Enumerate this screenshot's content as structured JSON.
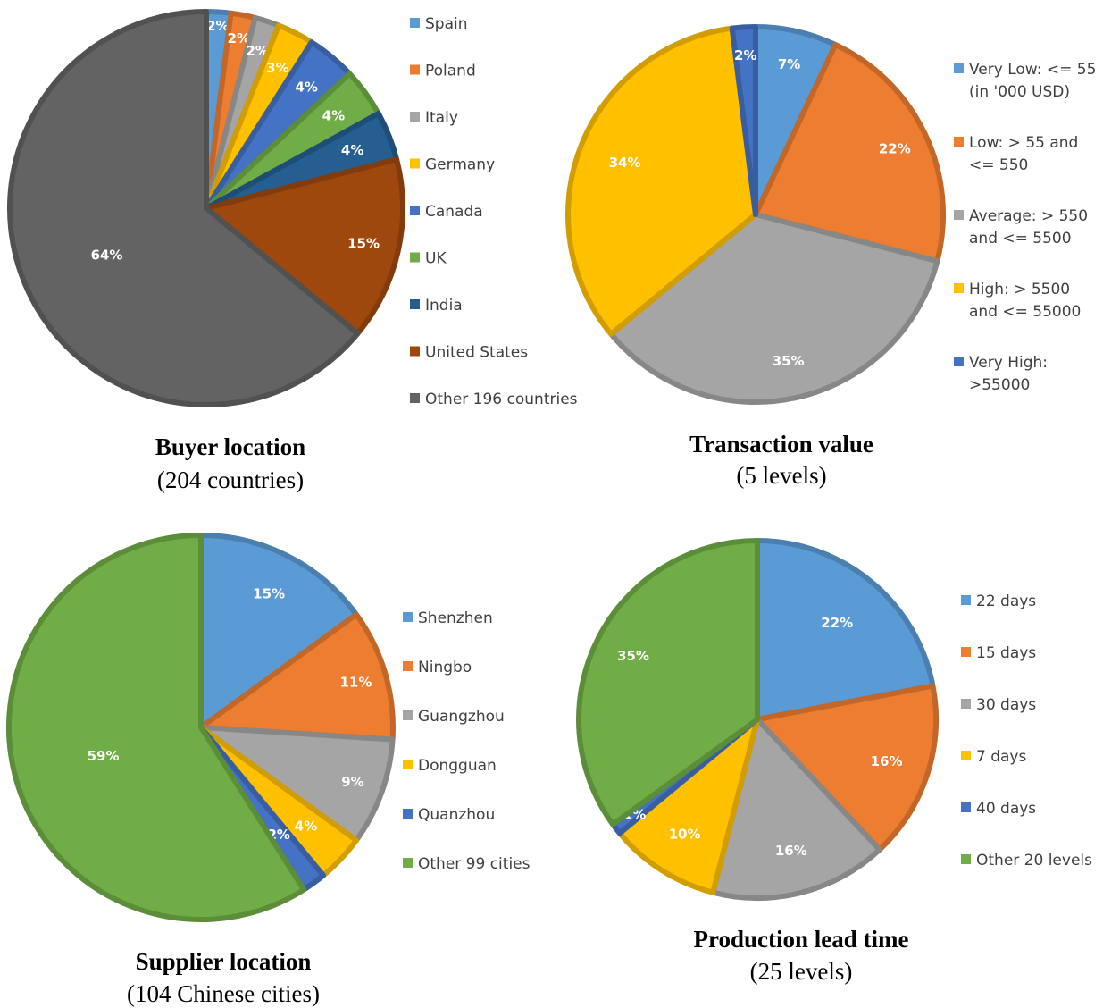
{
  "chart_data": [
    {
      "type": "pie",
      "title": "Buyer location",
      "subtitle": "(204 countries)",
      "legend_position": "right",
      "series": [
        {
          "name": "Spain",
          "value": 2,
          "label": "2%",
          "color": "#5b9bd5"
        },
        {
          "name": "Poland",
          "value": 2,
          "label": "2%",
          "color": "#ed7d31"
        },
        {
          "name": "Italy",
          "value": 2,
          "label": "2%",
          "color": "#a5a5a5"
        },
        {
          "name": "Germany",
          "value": 3,
          "label": "3%",
          "color": "#ffc000"
        },
        {
          "name": "Canada",
          "value": 4,
          "label": "4%",
          "color": "#4472c4"
        },
        {
          "name": "UK",
          "value": 4,
          "label": "4%",
          "color": "#70ad47"
        },
        {
          "name": "India",
          "value": 4,
          "label": "4%",
          "color": "#255e91"
        },
        {
          "name": "United States",
          "value": 15,
          "label": "15%",
          "color": "#9e480e"
        },
        {
          "name": "Other 196 countries",
          "value": 64,
          "label": "64%",
          "color": "#636363"
        }
      ]
    },
    {
      "type": "pie",
      "title": "Transaction value",
      "subtitle": "(5 levels)",
      "legend_position": "right",
      "series": [
        {
          "name": "Very Low: <= 55 (in '000 USD)",
          "legend_lines": [
            "Very Low: <= 55",
            "(in '000 USD)"
          ],
          "value": 7,
          "label": "7%",
          "color": "#5b9bd5"
        },
        {
          "name": "Low: > 55 and <= 550",
          "legend_lines": [
            "Low: > 55 and",
            "<= 550"
          ],
          "value": 22,
          "label": "22%",
          "color": "#ed7d31"
        },
        {
          "name": "Average: > 550 and <= 5500",
          "legend_lines": [
            "Average:  > 550",
            "and <= 5500"
          ],
          "value": 35,
          "label": "35%",
          "color": "#a5a5a5"
        },
        {
          "name": "High: > 5500 and <= 55000",
          "legend_lines": [
            "High: > 5500",
            "and <= 55000"
          ],
          "value": 34,
          "label": "34%",
          "color": "#ffc000"
        },
        {
          "name": "Very High: >55000",
          "legend_lines": [
            "Very High:",
            ">55000"
          ],
          "value": 2,
          "label": "2%",
          "color": "#4472c4"
        }
      ]
    },
    {
      "type": "pie",
      "title": "Supplier location",
      "subtitle": "(104 Chinese cities)",
      "legend_position": "right",
      "series": [
        {
          "name": "Shenzhen",
          "value": 15,
          "label": "15%",
          "color": "#5b9bd5"
        },
        {
          "name": "Ningbo",
          "value": 11,
          "label": "11%",
          "color": "#ed7d31"
        },
        {
          "name": "Guangzhou",
          "value": 9,
          "label": "9%",
          "color": "#a5a5a5"
        },
        {
          "name": "Dongguan",
          "value": 4,
          "label": "4%",
          "color": "#ffc000"
        },
        {
          "name": "Quanzhou",
          "value": 2,
          "label": "2%",
          "color": "#4472c4"
        },
        {
          "name": "Other 99 cities",
          "value": 59,
          "label": "59%",
          "color": "#70ad47"
        }
      ]
    },
    {
      "type": "pie",
      "title": "Production lead time",
      "subtitle": "(25 levels)",
      "legend_position": "right",
      "series": [
        {
          "name": "22 days",
          "value": 22,
          "label": "22%",
          "color": "#5b9bd5"
        },
        {
          "name": "15 days",
          "value": 16,
          "label": "16%",
          "color": "#ed7d31"
        },
        {
          "name": "30 days",
          "value": 16,
          "label": "16%",
          "color": "#a5a5a5"
        },
        {
          "name": "7 days",
          "value": 10,
          "label": "10%",
          "color": "#ffc000"
        },
        {
          "name": "40 days",
          "value": 1,
          "label": "1%",
          "color": "#4472c4"
        },
        {
          "name": "Other 20 levels",
          "value": 35,
          "label": "35%",
          "color": "#70ad47"
        }
      ]
    }
  ]
}
